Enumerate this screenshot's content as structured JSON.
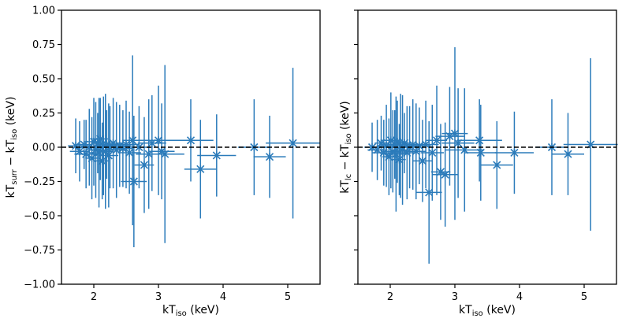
{
  "chart_data": [
    {
      "type": "scatter",
      "panel": "left",
      "xlabel": {
        "main": "kT",
        "sub": "iso",
        "unit": " (keV)"
      },
      "ylabel": {
        "a_main": "kT",
        "a_sub": "surr",
        "op": " − ",
        "b_main": "kT",
        "b_sub": "iso",
        "unit": " (keV)"
      },
      "xlim": [
        1.5,
        5.5
      ],
      "ylim": [
        -1.0,
        1.0
      ],
      "xticks": [
        2,
        3,
        4,
        5
      ],
      "yticks": [
        -1.0,
        -0.75,
        -0.5,
        -0.25,
        0.0,
        0.25,
        0.5,
        0.75,
        1.0
      ],
      "ytick_labels": [
        "−1.00",
        "−0.75",
        "−0.50",
        "−0.25",
        "0.00",
        "0.25",
        "0.50",
        "0.75",
        "1.00"
      ],
      "reference_line": 0.0,
      "color": "#2b7bba",
      "points": [
        {
          "x": 1.72,
          "y": 0.01,
          "xerr": 0.12,
          "yerr": 0.2
        },
        {
          "x": 1.78,
          "y": -0.03,
          "xerr": 0.15,
          "yerr": 0.22
        },
        {
          "x": 1.85,
          "y": 0.02,
          "xerr": 0.1,
          "yerr": 0.18
        },
        {
          "x": 1.88,
          "y": -0.05,
          "xerr": 0.18,
          "yerr": 0.25
        },
        {
          "x": 1.93,
          "y": 0.0,
          "xerr": 0.12,
          "yerr": 0.28
        },
        {
          "x": 1.97,
          "y": -0.08,
          "xerr": 0.1,
          "yerr": 0.3
        },
        {
          "x": 2.0,
          "y": 0.04,
          "xerr": 0.14,
          "yerr": 0.32
        },
        {
          "x": 2.03,
          "y": -0.02,
          "xerr": 0.12,
          "yerr": 0.35
        },
        {
          "x": 2.06,
          "y": 0.03,
          "xerr": 0.1,
          "yerr": 0.22
        },
        {
          "x": 2.08,
          "y": -0.04,
          "xerr": 0.16,
          "yerr": 0.4
        },
        {
          "x": 2.1,
          "y": 0.06,
          "xerr": 0.12,
          "yerr": 0.3
        },
        {
          "x": 2.13,
          "y": -0.1,
          "xerr": 0.1,
          "yerr": 0.28
        },
        {
          "x": 2.15,
          "y": 0.01,
          "xerr": 0.14,
          "yerr": 0.36
        },
        {
          "x": 2.18,
          "y": -0.03,
          "xerr": 0.12,
          "yerr": 0.42
        },
        {
          "x": 2.2,
          "y": 0.02,
          "xerr": 0.1,
          "yerr": 0.25
        },
        {
          "x": 2.23,
          "y": -0.06,
          "xerr": 0.15,
          "yerr": 0.38
        },
        {
          "x": 2.25,
          "y": 0.0,
          "xerr": 0.12,
          "yerr": 0.3
        },
        {
          "x": 2.3,
          "y": 0.03,
          "xerr": 0.14,
          "yerr": 0.33
        },
        {
          "x": 2.35,
          "y": -0.02,
          "xerr": 0.16,
          "yerr": 0.35
        },
        {
          "x": 2.4,
          "y": 0.01,
          "xerr": 0.18,
          "yerr": 0.3
        },
        {
          "x": 2.45,
          "y": -0.01,
          "xerr": 0.15,
          "yerr": 0.28
        },
        {
          "x": 2.5,
          "y": 0.02,
          "xerr": 0.2,
          "yerr": 0.32
        },
        {
          "x": 2.55,
          "y": -0.04,
          "xerr": 0.18,
          "yerr": 0.3
        },
        {
          "x": 2.6,
          "y": 0.05,
          "xerr": 0.16,
          "yerr": 0.62
        },
        {
          "x": 2.62,
          "y": -0.25,
          "xerr": 0.2,
          "yerr": 0.48
        },
        {
          "x": 2.7,
          "y": 0.0,
          "xerr": 0.18,
          "yerr": 0.3
        },
        {
          "x": 2.78,
          "y": -0.13,
          "xerr": 0.15,
          "yerr": 0.35
        },
        {
          "x": 2.85,
          "y": -0.05,
          "xerr": 0.2,
          "yerr": 0.4
        },
        {
          "x": 2.9,
          "y": 0.03,
          "xerr": 0.22,
          "yerr": 0.35
        },
        {
          "x": 3.0,
          "y": 0.05,
          "xerr": 0.25,
          "yerr": 0.4
        },
        {
          "x": 3.05,
          "y": -0.03,
          "xerr": 0.2,
          "yerr": 0.35
        },
        {
          "x": 3.1,
          "y": -0.05,
          "xerr": 0.3,
          "yerr": 0.65
        },
        {
          "x": 3.5,
          "y": 0.05,
          "xerr": 0.35,
          "yerr": 0.3
        },
        {
          "x": 3.65,
          "y": -0.16,
          "xerr": 0.25,
          "yerr": 0.36
        },
        {
          "x": 3.9,
          "y": -0.06,
          "xerr": 0.3,
          "yerr": 0.3
        },
        {
          "x": 4.48,
          "y": 0.0,
          "xerr": 0.25,
          "yerr": 0.35
        },
        {
          "x": 4.72,
          "y": -0.07,
          "xerr": 0.25,
          "yerr": 0.3
        },
        {
          "x": 5.08,
          "y": 0.03,
          "xerr": 0.42,
          "yerr": 0.55
        }
      ]
    },
    {
      "type": "scatter",
      "panel": "right",
      "xlabel": {
        "main": "kT",
        "sub": "iso",
        "unit": " (keV)"
      },
      "ylabel": {
        "a_main": "kT",
        "a_sub": "lc",
        "op": " − ",
        "b_main": "kT",
        "b_sub": "iso",
        "unit": " (keV)"
      },
      "xlim": [
        1.5,
        5.5
      ],
      "ylim": [
        -1.0,
        1.0
      ],
      "xticks": [
        2,
        3,
        4,
        5
      ],
      "yticks": [
        -1.0,
        -0.75,
        -0.5,
        -0.25,
        0.0,
        0.25,
        0.5,
        0.75,
        1.0
      ],
      "ytick_labels": [],
      "reference_line": 0.0,
      "color": "#2b7bba",
      "points": [
        {
          "x": 1.72,
          "y": 0.0,
          "xerr": 0.12,
          "yerr": 0.18
        },
        {
          "x": 1.8,
          "y": -0.02,
          "xerr": 0.15,
          "yerr": 0.22
        },
        {
          "x": 1.86,
          "y": 0.03,
          "xerr": 0.1,
          "yerr": 0.2
        },
        {
          "x": 1.9,
          "y": -0.04,
          "xerr": 0.18,
          "yerr": 0.24
        },
        {
          "x": 1.94,
          "y": 0.01,
          "xerr": 0.12,
          "yerr": 0.3
        },
        {
          "x": 1.98,
          "y": -0.07,
          "xerr": 0.1,
          "yerr": 0.28
        },
        {
          "x": 2.01,
          "y": 0.05,
          "xerr": 0.14,
          "yerr": 0.35
        },
        {
          "x": 2.04,
          "y": -0.03,
          "xerr": 0.12,
          "yerr": 0.3
        },
        {
          "x": 2.07,
          "y": 0.02,
          "xerr": 0.1,
          "yerr": 0.25
        },
        {
          "x": 2.09,
          "y": -0.05,
          "xerr": 0.16,
          "yerr": 0.42
        },
        {
          "x": 2.11,
          "y": 0.04,
          "xerr": 0.12,
          "yerr": 0.3
        },
        {
          "x": 2.14,
          "y": -0.09,
          "xerr": 0.1,
          "yerr": 0.26
        },
        {
          "x": 2.16,
          "y": 0.01,
          "xerr": 0.14,
          "yerr": 0.38
        },
        {
          "x": 2.19,
          "y": -0.02,
          "xerr": 0.12,
          "yerr": 0.4
        },
        {
          "x": 2.22,
          "y": 0.03,
          "xerr": 0.1,
          "yerr": 0.22
        },
        {
          "x": 2.26,
          "y": -0.04,
          "xerr": 0.15,
          "yerr": 0.34
        },
        {
          "x": 2.3,
          "y": 0.0,
          "xerr": 0.12,
          "yerr": 0.3
        },
        {
          "x": 2.35,
          "y": 0.02,
          "xerr": 0.14,
          "yerr": 0.33
        },
        {
          "x": 2.4,
          "y": -0.03,
          "xerr": 0.16,
          "yerr": 0.35
        },
        {
          "x": 2.45,
          "y": 0.01,
          "xerr": 0.18,
          "yerr": 0.28
        },
        {
          "x": 2.5,
          "y": -0.1,
          "xerr": 0.15,
          "yerr": 0.3
        },
        {
          "x": 2.55,
          "y": 0.02,
          "xerr": 0.2,
          "yerr": 0.32
        },
        {
          "x": 2.6,
          "y": -0.33,
          "xerr": 0.2,
          "yerr": 0.52
        },
        {
          "x": 2.65,
          "y": -0.04,
          "xerr": 0.18,
          "yerr": 0.35
        },
        {
          "x": 2.72,
          "y": 0.05,
          "xerr": 0.16,
          "yerr": 0.4
        },
        {
          "x": 2.78,
          "y": -0.18,
          "xerr": 0.15,
          "yerr": 0.35
        },
        {
          "x": 2.85,
          "y": -0.2,
          "xerr": 0.2,
          "yerr": 0.38
        },
        {
          "x": 2.92,
          "y": 0.08,
          "xerr": 0.22,
          "yerr": 0.36
        },
        {
          "x": 3.0,
          "y": 0.1,
          "xerr": 0.2,
          "yerr": 0.63
        },
        {
          "x": 3.05,
          "y": 0.03,
          "xerr": 0.25,
          "yerr": 0.4
        },
        {
          "x": 3.15,
          "y": -0.02,
          "xerr": 0.3,
          "yerr": 0.45
        },
        {
          "x": 3.38,
          "y": 0.05,
          "xerr": 0.35,
          "yerr": 0.3
        },
        {
          "x": 3.4,
          "y": -0.04,
          "xerr": 0.25,
          "yerr": 0.35
        },
        {
          "x": 3.65,
          "y": -0.13,
          "xerr": 0.25,
          "yerr": 0.32
        },
        {
          "x": 3.92,
          "y": -0.04,
          "xerr": 0.3,
          "yerr": 0.3
        },
        {
          "x": 4.5,
          "y": 0.0,
          "xerr": 0.25,
          "yerr": 0.35
        },
        {
          "x": 4.75,
          "y": -0.05,
          "xerr": 0.25,
          "yerr": 0.3
        },
        {
          "x": 5.1,
          "y": 0.02,
          "xerr": 0.42,
          "yerr": 0.63
        }
      ]
    }
  ]
}
